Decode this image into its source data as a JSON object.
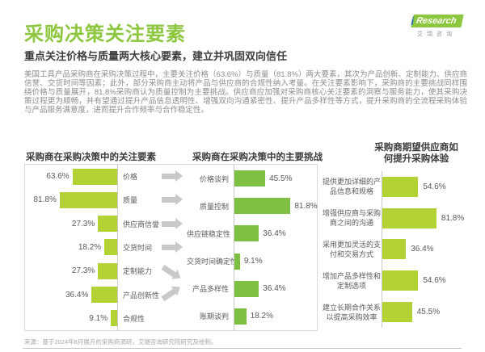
{
  "header": {
    "title": "采购决策关注要素",
    "subtitle": "重点关注价格与质量两大核心要素，建立并巩固双向信任",
    "logo": {
      "i": "i",
      "research": "Research",
      "caption": "艾瑞咨询"
    }
  },
  "body_text": "美国工具产品采购商在采购决策过程中，主要关注价格（63.6%）与质量（81.8%）两大要素，其次为产品创新、定制能力、供应商信誉、交货时间等因素；此外，部分采购商主动将产品与供应商的合规性纳入考量。在关注要素影响下，采购商的主要挑战同样围绕价格与质量展开，81.8%采购商认为质量控制为主要挑战。供应商应加强对采购商核心关注要素的洞察与服务能力，使其采购决策过程更为顺畅，并有望通过提升产品信息透明性、增强双向沟通紧密性、提升产品多样性等方式，提升采购商的全流程采购体验与产品服务满意度，进而提升合作频率与合作稳定性。",
  "colors": {
    "title_green": "#8dc63f",
    "bar_yellow_green": "#b2d235",
    "bar_green": "#7ec142",
    "arrow_gray": "#c9c9c9"
  },
  "chart_data": [
    {
      "type": "bar",
      "title": "采购商在采购决策中的关注要素",
      "orientation": "horizontal, bars right-aligned to axis, values on left",
      "unit": "%",
      "categories": [
        "价格",
        "质量",
        "供应商信誉",
        "交货时间",
        "定制能力",
        "产品创新性",
        "合规性"
      ],
      "values": [
        63.6,
        81.8,
        27.3,
        18.2,
        27.3,
        36.4,
        9.1
      ],
      "arrows_to_challenges": [
        "right",
        "right",
        "right",
        "right",
        "down-right",
        "up-right",
        "none"
      ]
    },
    {
      "type": "bar",
      "title": "采购商在采购决策中的主要挑战",
      "orientation": "horizontal, bars grow right from axis, values on right",
      "unit": "%",
      "categories": [
        "价格谈判",
        "质量控制",
        "供应链稳定性",
        "交货时间确定性",
        "产品多样性",
        "账期谈判"
      ],
      "values": [
        45.5,
        81.8,
        36.4,
        9.1,
        36.4,
        18.2
      ]
    },
    {
      "type": "bar",
      "title": "采购商期望供应商如何提升采购体验",
      "orientation": "horizontal, bars grow right from axis, values on right",
      "unit": "%",
      "categories": [
        "提供更加详细的产\n品信息和规格",
        "增强供应商与采购\n商之间的沟通",
        "采用更加灵活的支\n付和交易方式",
        "增加产品多样性和\n定制选项",
        "建立长期合作关系\n以提高采购效率"
      ],
      "values": [
        54.6,
        81.8,
        36.4,
        54.6,
        45.5
      ]
    }
  ],
  "footer": {
    "source": "来源：基于2024年8月展开的采购商调研，艾瑞咨询研究院研究及绘制。"
  }
}
